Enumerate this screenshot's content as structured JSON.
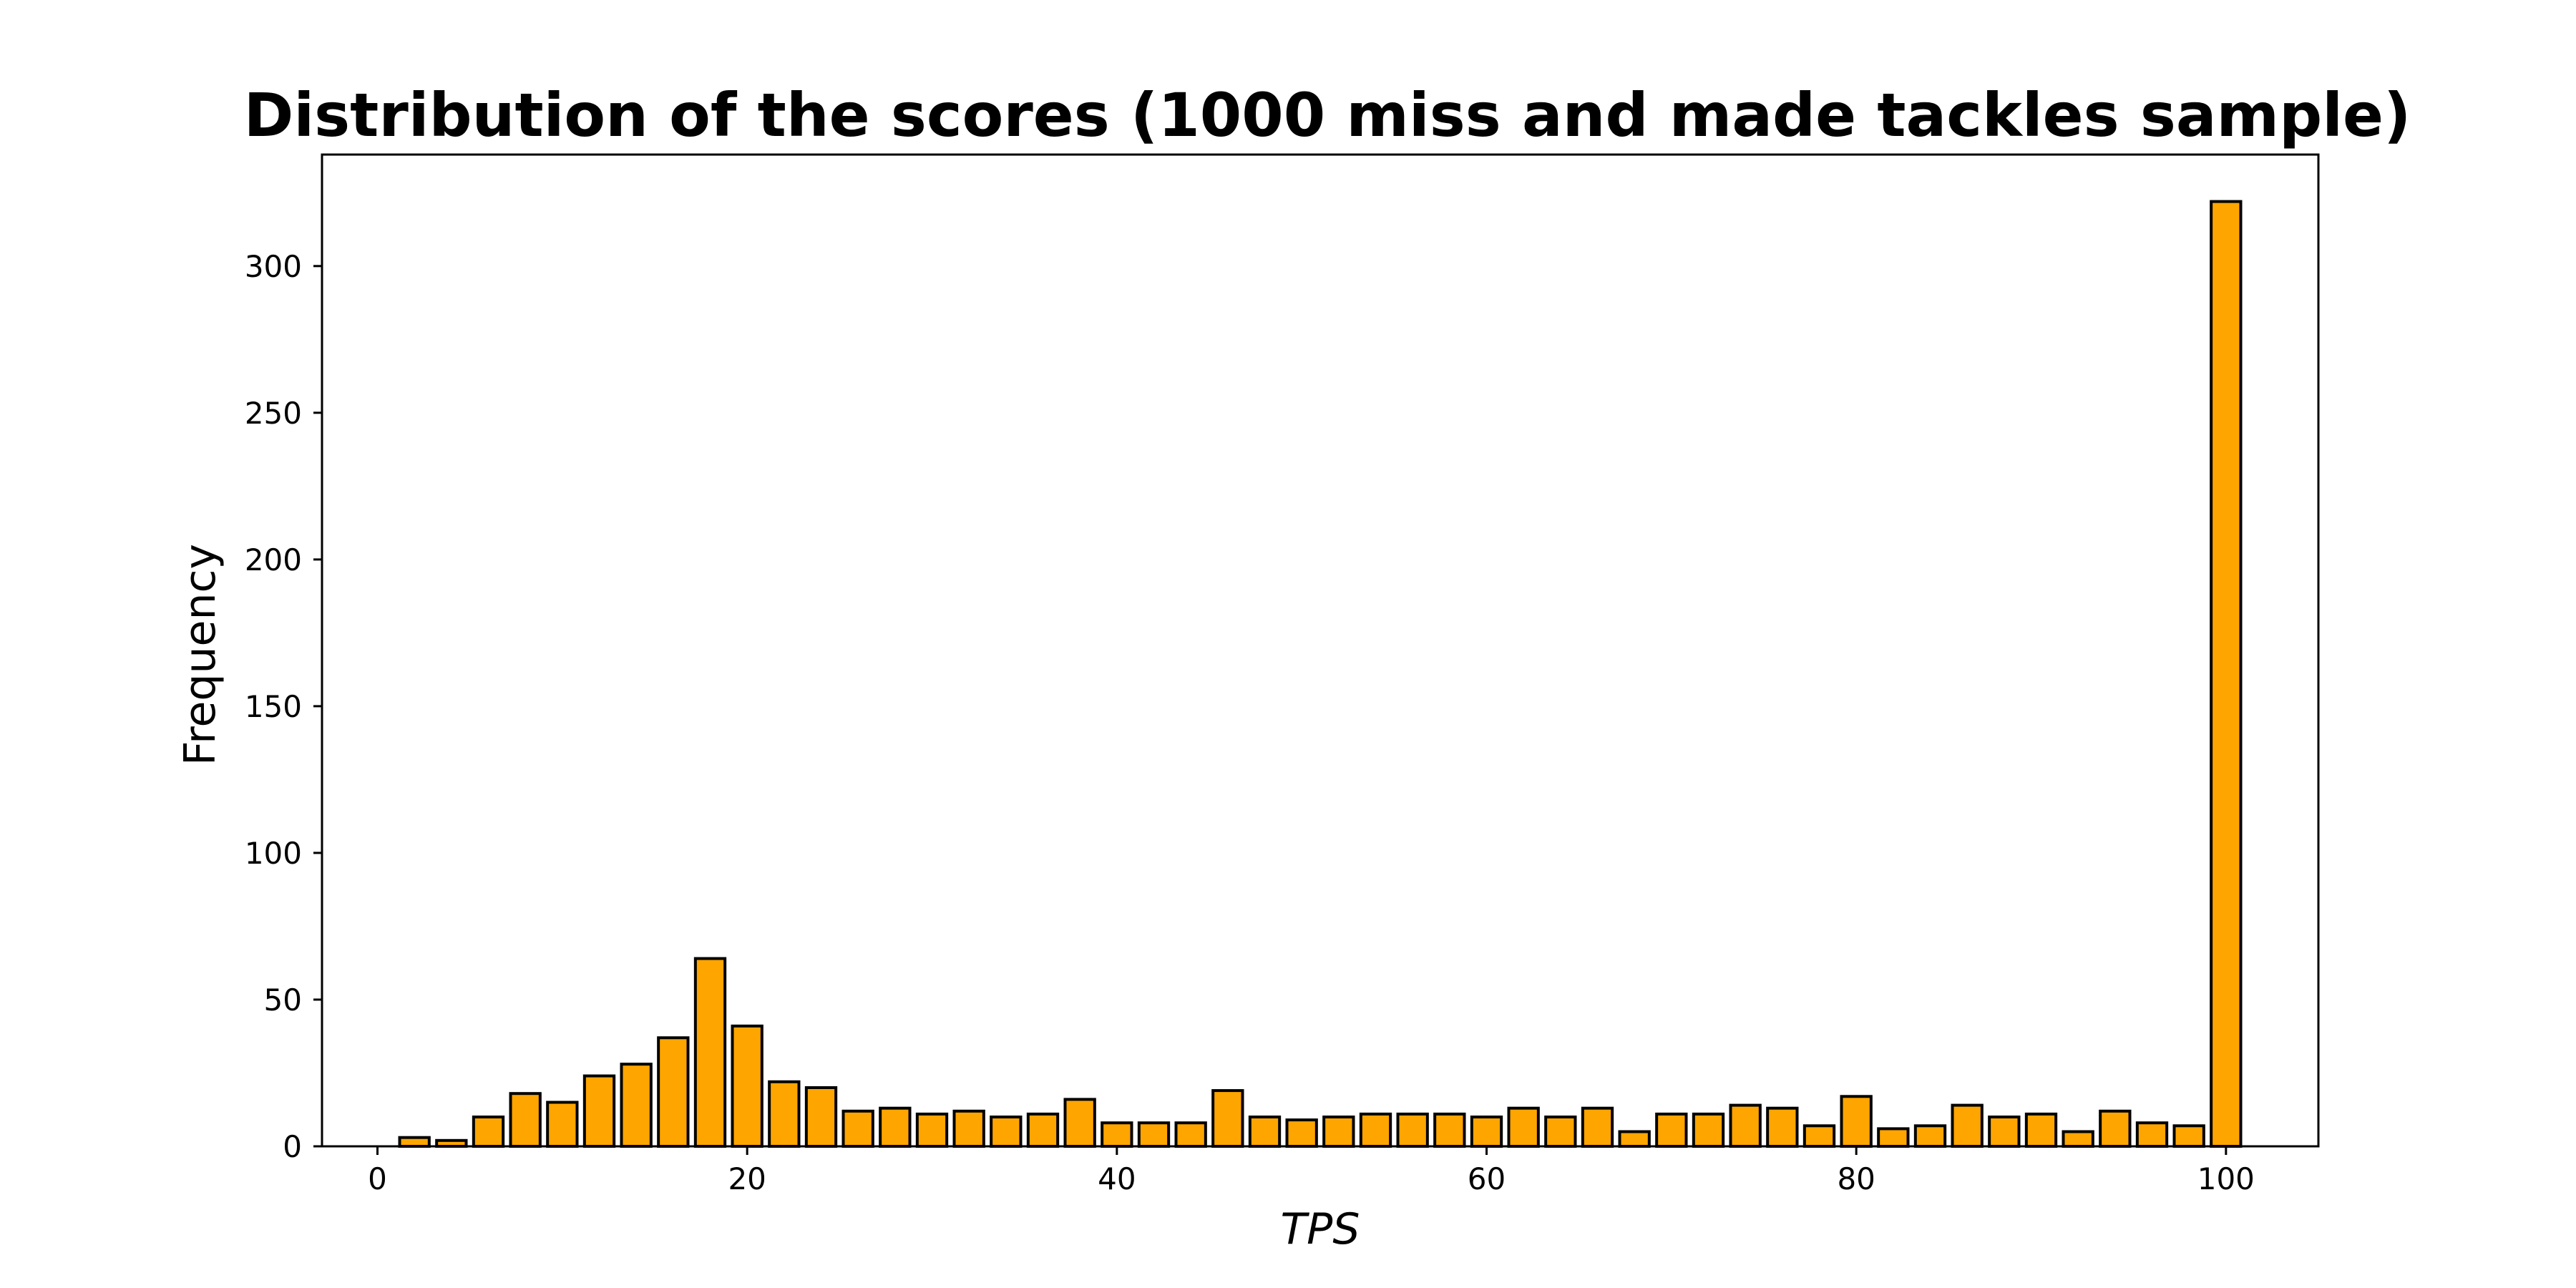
{
  "chart_data": {
    "type": "bar",
    "title": "Distribution of the scores (1000 miss and made tackles sample)",
    "xlabel": "TPS",
    "ylabel": "Frequency",
    "xlim": [
      -3,
      105
    ],
    "ylim": [
      0,
      338
    ],
    "xticks": [
      0,
      20,
      40,
      60,
      80,
      100
    ],
    "yticks": [
      0,
      50,
      100,
      150,
      200,
      250,
      300
    ],
    "bar_width": 1.6,
    "bar_color": "#FFA500",
    "edge_color": "#000000",
    "grid": false,
    "x": [
      0,
      2,
      4,
      6,
      8,
      10,
      12,
      14,
      16,
      18,
      20,
      22,
      24,
      26,
      28,
      30,
      32,
      34,
      36,
      38,
      40,
      42,
      44,
      46,
      48,
      50,
      52,
      54,
      56,
      58,
      60,
      62,
      64,
      66,
      68,
      70,
      72,
      74,
      76,
      78,
      80,
      82,
      84,
      86,
      88,
      90,
      92,
      94,
      96,
      98,
      100
    ],
    "values": [
      0,
      3,
      2,
      10,
      18,
      15,
      24,
      28,
      37,
      64,
      41,
      22,
      20,
      12,
      13,
      11,
      12,
      10,
      11,
      16,
      8,
      8,
      8,
      19,
      10,
      9,
      10,
      11,
      11,
      11,
      10,
      13,
      10,
      13,
      5,
      11,
      11,
      14,
      13,
      7,
      17,
      6,
      7,
      14,
      10,
      11,
      5,
      12,
      8,
      7,
      322
    ]
  }
}
